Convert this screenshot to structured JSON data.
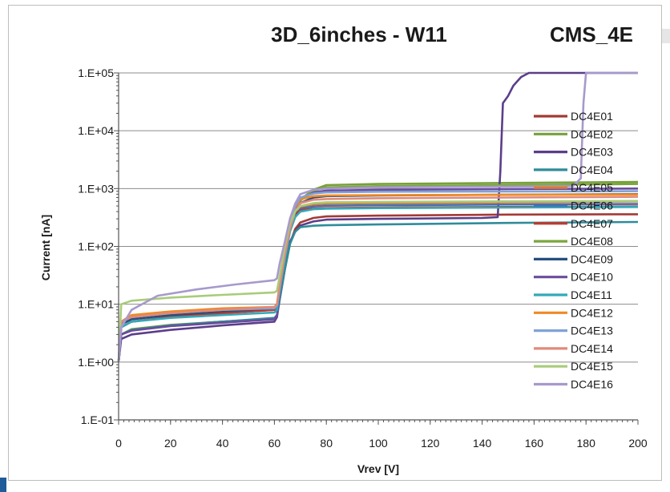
{
  "chart_data": {
    "type": "line",
    "title": "3D_6inches - W11",
    "subtitle": "CMS_4E",
    "xlabel": "Vrev [V]",
    "ylabel": "Current [nA]",
    "xlim": [
      0,
      200
    ],
    "ylim": [
      0.1,
      100000
    ],
    "y_scale": "log",
    "x_ticks": [
      0,
      20,
      40,
      60,
      80,
      100,
      120,
      140,
      160,
      180,
      200
    ],
    "y_ticks": [
      0.1,
      1,
      10,
      100,
      1000,
      10000,
      100000
    ],
    "y_tick_labels": [
      "1.E-01",
      "1.E+00",
      "1.E+01",
      "1.E+02",
      "1.E+03",
      "1.E+04",
      "1.E+05"
    ],
    "grid": "horizontal",
    "legend_position": "right",
    "series": [
      {
        "name": "DC4E01",
        "color": "#a33a35",
        "x": [
          0,
          1,
          5,
          20,
          40,
          60,
          61,
          62,
          64,
          66,
          68,
          70,
          75,
          80,
          100,
          150,
          200
        ],
        "y": [
          1.0,
          3.0,
          3.6,
          4.3,
          5.0,
          5.7,
          6.5,
          12,
          40,
          110,
          200,
          260,
          310,
          330,
          340,
          355,
          360
        ]
      },
      {
        "name": "DC4E02",
        "color": "#77a03b",
        "x": [
          0,
          1,
          5,
          20,
          40,
          60,
          61,
          62,
          64,
          66,
          68,
          70,
          75,
          80,
          100,
          150,
          200
        ],
        "y": [
          1.0,
          3.0,
          3.7,
          4.4,
          5.0,
          5.6,
          6.5,
          14,
          60,
          200,
          420,
          650,
          950,
          1150,
          1200,
          1250,
          1300
        ]
      },
      {
        "name": "DC4E03",
        "color": "#5b3e8a",
        "x": [
          0,
          1,
          5,
          20,
          40,
          60,
          61,
          62,
          64,
          66,
          68,
          70,
          75,
          80,
          100,
          140,
          146,
          147,
          148,
          150,
          152,
          155,
          158,
          200
        ],
        "y": [
          1.0,
          2.5,
          3.0,
          3.6,
          4.3,
          5.0,
          6.0,
          12,
          40,
          120,
          180,
          230,
          270,
          290,
          300,
          310,
          320,
          2000,
          30000,
          40000,
          60000,
          85000,
          100000,
          100000
        ]
      },
      {
        "name": "DC4E04",
        "color": "#2f8c9a",
        "x": [
          0,
          1,
          5,
          20,
          40,
          60,
          61,
          62,
          64,
          66,
          68,
          70,
          75,
          80,
          100,
          150,
          200
        ],
        "y": [
          1.0,
          3.0,
          3.6,
          4.3,
          5.0,
          5.8,
          6.5,
          12,
          40,
          110,
          180,
          215,
          228,
          232,
          240,
          255,
          265
        ]
      },
      {
        "name": "DC4E05",
        "color": "#e07b2b",
        "x": [
          0,
          1,
          5,
          20,
          40,
          60,
          61,
          62,
          64,
          66,
          68,
          70,
          75,
          80,
          100,
          150,
          200
        ],
        "y": [
          1.0,
          5.0,
          6.0,
          7.0,
          8.0,
          8.5,
          9.5,
          20,
          80,
          220,
          380,
          480,
          530,
          550,
          560,
          580,
          600
        ]
      },
      {
        "name": "DC4E06",
        "color": "#4a6fb0",
        "x": [
          0,
          1,
          5,
          20,
          40,
          60,
          61,
          62,
          64,
          66,
          68,
          70,
          75,
          80,
          100,
          150,
          200
        ],
        "y": [
          1.0,
          4.0,
          5.0,
          6.0,
          7.0,
          8.0,
          9.0,
          20,
          70,
          200,
          360,
          450,
          490,
          505,
          515,
          530,
          540
        ]
      },
      {
        "name": "DC4E07",
        "color": "#c0392b",
        "x": [
          0,
          1,
          5,
          20,
          40,
          60,
          61,
          62,
          64,
          66,
          68,
          70,
          75,
          80,
          100,
          150,
          200
        ],
        "y": [
          1.0,
          4.0,
          5.0,
          6.0,
          7.0,
          8.0,
          9.0,
          20,
          70,
          200,
          350,
          420,
          450,
          460,
          470,
          480,
          490
        ]
      },
      {
        "name": "DC4E08",
        "color": "#7aa63e",
        "x": [
          0,
          1,
          5,
          20,
          40,
          60,
          61,
          62,
          64,
          66,
          68,
          70,
          75,
          80,
          100,
          150,
          200
        ],
        "y": [
          1.0,
          5.0,
          6.0,
          7.0,
          8.0,
          8.5,
          9.5,
          20,
          70,
          200,
          400,
          620,
          900,
          1050,
          1100,
          1150,
          1200
        ]
      },
      {
        "name": "DC4E09",
        "color": "#274f7f",
        "x": [
          0,
          1,
          5,
          20,
          40,
          60,
          61,
          62,
          64,
          66,
          68,
          70,
          75,
          80,
          100,
          150,
          200
        ],
        "y": [
          1.0,
          4.5,
          5.5,
          6.5,
          7.5,
          8.5,
          9.5,
          20,
          70,
          200,
          380,
          560,
          700,
          740,
          760,
          780,
          800
        ]
      },
      {
        "name": "DC4E10",
        "color": "#6a4c9c",
        "x": [
          0,
          1,
          5,
          20,
          40,
          60,
          61,
          62,
          64,
          66,
          68,
          70,
          75,
          80,
          100,
          150,
          200
        ],
        "y": [
          1.0,
          3.0,
          3.5,
          4.2,
          4.8,
          5.5,
          6.5,
          14,
          60,
          200,
          420,
          650,
          850,
          920,
          950,
          980,
          1000
        ]
      },
      {
        "name": "DC4E11",
        "color": "#33a9b8",
        "x": [
          0,
          1,
          5,
          20,
          40,
          60,
          61,
          62,
          64,
          66,
          68,
          70,
          75,
          80,
          100,
          150,
          200
        ],
        "y": [
          1.0,
          4.0,
          5.0,
          5.8,
          6.5,
          7.2,
          8.0,
          16,
          60,
          180,
          320,
          400,
          440,
          450,
          460,
          470,
          480
        ]
      },
      {
        "name": "DC4E12",
        "color": "#f08a24",
        "x": [
          0,
          1,
          5,
          20,
          40,
          60,
          61,
          62,
          64,
          66,
          68,
          70,
          75,
          80,
          100,
          150,
          200
        ],
        "y": [
          1.0,
          5.0,
          6.5,
          7.5,
          8.5,
          9.0,
          10.0,
          22,
          80,
          250,
          480,
          650,
          740,
          760,
          770,
          780,
          790
        ]
      },
      {
        "name": "DC4E13",
        "color": "#7fa2d6",
        "x": [
          0,
          1,
          5,
          20,
          40,
          60,
          61,
          62,
          64,
          66,
          68,
          70,
          75,
          80,
          100,
          150,
          200
        ],
        "y": [
          1.0,
          5.0,
          6.0,
          7.0,
          8.0,
          8.5,
          9.5,
          20,
          80,
          250,
          500,
          700,
          820,
          860,
          880,
          890,
          900
        ]
      },
      {
        "name": "DC4E14",
        "color": "#e08a7a",
        "x": [
          0,
          1,
          5,
          20,
          40,
          60,
          61,
          62,
          64,
          66,
          68,
          70,
          75,
          80,
          100,
          150,
          200
        ],
        "y": [
          1.0,
          5.0,
          6.0,
          7.0,
          8.0,
          9.0,
          10.0,
          20,
          70,
          200,
          400,
          560,
          640,
          660,
          680,
          700,
          720
        ]
      },
      {
        "name": "DC4E15",
        "color": "#a8cc7a",
        "x": [
          0,
          1,
          5,
          20,
          40,
          60,
          61,
          62,
          64,
          66,
          68,
          70,
          75,
          80,
          100,
          150,
          200
        ],
        "y": [
          1.0,
          10.0,
          11.5,
          13.0,
          14.5,
          16.0,
          17.0,
          30,
          100,
          250,
          400,
          500,
          560,
          580,
          590,
          600,
          610
        ]
      },
      {
        "name": "DC4E16",
        "color": "#a899cc",
        "x": [
          0,
          1,
          5,
          15,
          30,
          45,
          60,
          61,
          62,
          64,
          66,
          68,
          70,
          75,
          80,
          100,
          150,
          175,
          178,
          179,
          180,
          200
        ],
        "y": [
          1.0,
          4.0,
          8.0,
          14.0,
          18.0,
          22.0,
          26.0,
          28,
          50,
          120,
          300,
          550,
          800,
          950,
          1000,
          1050,
          1080,
          1100,
          1500,
          30000,
          100000,
          100000
        ]
      }
    ]
  }
}
